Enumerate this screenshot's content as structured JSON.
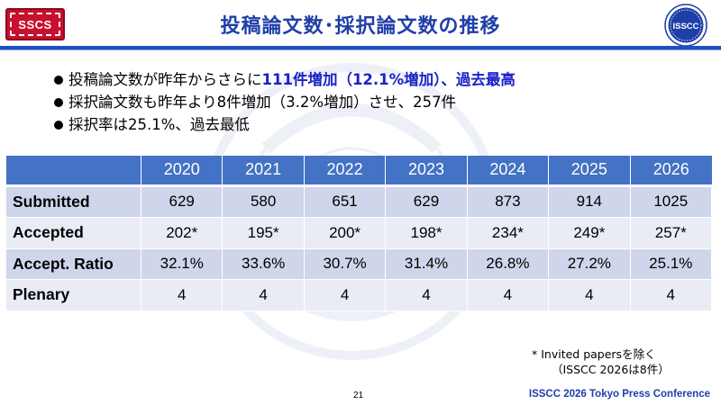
{
  "header": {
    "logo_left_text": "SSCS",
    "title": "投稿論文数･採択論文数の推移",
    "logo_right_text": "ISSCC"
  },
  "bullets": [
    {
      "prefix": "投稿論文数が昨年からさらに",
      "highlight": "111件増加（12.1%増加）、過去最高",
      "suffix": ""
    },
    {
      "prefix": "採択論文数も昨年より8件増加（3.2%増加）させ、257件",
      "highlight": "",
      "suffix": ""
    },
    {
      "prefix": "採択率は25.1%、過去最低",
      "highlight": "",
      "suffix": ""
    }
  ],
  "table": {
    "corner": "",
    "years": [
      "2020",
      "2021",
      "2022",
      "2023",
      "2024",
      "2025",
      "2026"
    ],
    "rows": [
      {
        "label": "Submitted",
        "values": [
          "629",
          "580",
          "651",
          "629",
          "873",
          "914",
          "1025"
        ]
      },
      {
        "label": "Accepted",
        "values": [
          "202*",
          "195*",
          "200*",
          "198*",
          "234*",
          "249*",
          "257*"
        ]
      },
      {
        "label": "Accept. Ratio",
        "values": [
          "32.1%",
          "33.6%",
          "30.7%",
          "31.4%",
          "26.8%",
          "27.2%",
          "25.1%"
        ]
      },
      {
        "label": "Plenary",
        "values": [
          "4",
          "4",
          "4",
          "4",
          "4",
          "4",
          "4"
        ]
      }
    ]
  },
  "footnote": {
    "line1": "* Invited papersを除く",
    "line2": "（ISSCC 2026は8件）"
  },
  "footer": {
    "page_number": "21",
    "conference": "ISSCC 2026 Tokyo Press Conference"
  },
  "colors": {
    "title_blue": "#1f3fa8",
    "highlight_blue": "#1a22c8",
    "table_header": "#4472c4",
    "table_row_dark": "#cfd5ea",
    "table_row_light": "#e9ebf5",
    "logo_red": "#c8102e"
  }
}
